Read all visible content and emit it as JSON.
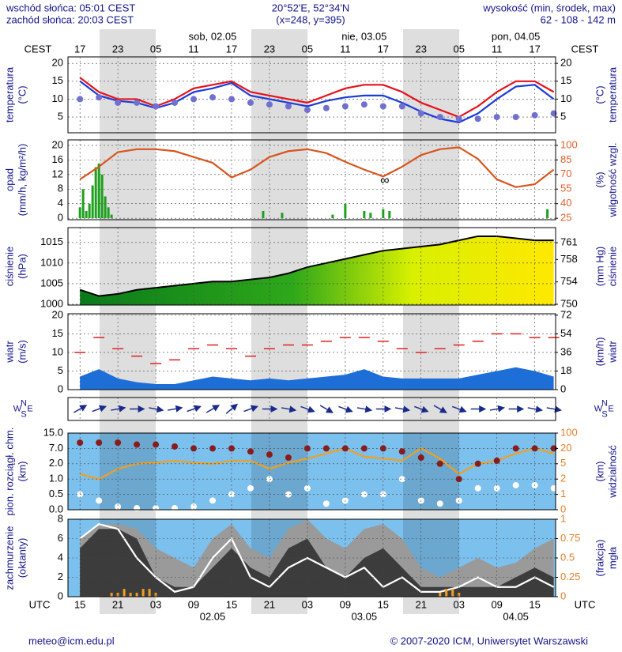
{
  "header": {
    "sunrise": "wschód słońca: 05:01 CEST",
    "sunset": "zachód słońca: 20:03 CEST",
    "coords": "20°52'E, 52°34'N",
    "grid_point": "(x=248, y=395)",
    "elevation_title": "wysokość (min, środek, max)",
    "elevation": "62 - 108 - 142 m"
  },
  "time_axis": {
    "top_title": "CEST",
    "bottom_title": "UTC",
    "xlim": [
      13.1,
      90.3
    ],
    "x": [
      15,
      18,
      21,
      24,
      27,
      30,
      33,
      36,
      39,
      42,
      45,
      48,
      51,
      54,
      57,
      60,
      63,
      66,
      69,
      72,
      75,
      78,
      81,
      84,
      87,
      90
    ],
    "cest_ticks": [
      {
        "value": 15,
        "label": "17"
      },
      {
        "value": 21,
        "label": "23"
      },
      {
        "value": 27,
        "label": "05"
      },
      {
        "value": 33,
        "label": "11"
      },
      {
        "value": 39,
        "label": "17"
      },
      {
        "value": 45,
        "label": "23"
      },
      {
        "value": 51,
        "label": "05"
      },
      {
        "value": 57,
        "label": "11"
      },
      {
        "value": 63,
        "label": "17"
      },
      {
        "value": 69,
        "label": "23"
      },
      {
        "value": 75,
        "label": "05"
      },
      {
        "value": 81,
        "label": "11"
      },
      {
        "value": 87,
        "label": "17"
      }
    ],
    "utc_ticks": [
      15,
      21,
      {
        "value": 27,
        "label": "03"
      },
      {
        "value": 33,
        "label": "09"
      },
      {
        "value": 39,
        "label": "15"
      },
      {
        "value": 45,
        "label": "21"
      },
      {
        "value": 51,
        "label": "03"
      },
      {
        "value": 57,
        "label": "09"
      },
      {
        "value": 63,
        "label": "15"
      },
      {
        "value": 69,
        "label": "21"
      },
      {
        "value": 75,
        "label": "03"
      },
      {
        "value": 81,
        "label": "09"
      },
      {
        "value": 87,
        "label": "15"
      }
    ],
    "days": [
      {
        "top": "sob, 02.05",
        "bottom": "02.05"
      },
      {
        "top": "nie, 03.05",
        "bottom": "03.05"
      },
      {
        "top": "pon, 04.05",
        "bottom": "04.05"
      }
    ]
  },
  "chart_data": [
    {
      "type": "temperature",
      "ylabel": [
        "temperatura",
        "(°C)"
      ],
      "y2label": [
        "(°C)",
        "temperatura"
      ],
      "ylim": [
        0.6,
        21.8
      ],
      "yticks": [
        5,
        10,
        15,
        20
      ],
      "y2lim": [
        0.6,
        21.8
      ],
      "y2ticks": [
        5,
        10,
        15,
        20
      ],
      "series": [
        {
          "mark": "line",
          "color": "#e8101a",
          "values": [
            16,
            12,
            10,
            10,
            8,
            10,
            13,
            14,
            15,
            12,
            11,
            10,
            9,
            11,
            13,
            14,
            14,
            12,
            9,
            7,
            5,
            8,
            12,
            15,
            15,
            12
          ]
        },
        {
          "mark": "line",
          "color": "#1a3cd8",
          "values": [
            15,
            11,
            9.5,
            9,
            7.5,
            9,
            12,
            13,
            14.5,
            11,
            10,
            9,
            8,
            9.5,
            10.5,
            11,
            11,
            9,
            6.5,
            4.5,
            3.5,
            6,
            10,
            13.5,
            14,
            10
          ]
        },
        {
          "mark": "dots",
          "color": "#7070d0",
          "values": [
            10,
            10.5,
            9,
            9,
            8,
            9,
            10,
            10.5,
            10,
            9,
            8.5,
            8,
            7,
            7.5,
            8,
            8.5,
            8,
            8,
            6,
            5,
            4.5,
            4.5,
            5,
            5,
            5.5,
            6
          ]
        }
      ]
    },
    {
      "type": "precipitation",
      "ylabel": [
        "opad",
        "(mm/h, kg/m²/h)"
      ],
      "y2label": [
        "(%)",
        "wilgotność wzgl."
      ],
      "annotation": "∞",
      "ylim": [
        -0.4,
        21.5
      ],
      "yticks": [
        0,
        4,
        8,
        12,
        16,
        20
      ],
      "y2lim": [
        23.5,
        105.6
      ],
      "y2ticks": [
        25,
        40,
        55,
        70,
        85,
        100
      ],
      "y2tick_color": "#e0602a",
      "series": [
        {
          "mark": "bars",
          "color": "#1ea01e",
          "x": [
            15,
            15.5,
            16,
            16.5,
            17,
            17.5,
            18,
            18.5,
            19,
            19.5,
            20,
            44,
            47,
            55,
            57,
            60,
            61,
            63,
            64,
            89
          ],
          "values": [
            3,
            8,
            2,
            4,
            9,
            14,
            15,
            12,
            6,
            3,
            1,
            2,
            1.5,
            1,
            4,
            2,
            1.5,
            2.5,
            2,
            2.5
          ]
        },
        {
          "mark": "line",
          "axis": "y2",
          "color": "#d9541e",
          "values": [
            65,
            78,
            93,
            96,
            96,
            94,
            88,
            82,
            67,
            75,
            88,
            94,
            96,
            92,
            83,
            75,
            68,
            78,
            90,
            96,
            98,
            86,
            65,
            57,
            60,
            75
          ]
        }
      ]
    },
    {
      "type": "pressure",
      "ylabel": [
        "ciśnienie",
        "(hPa)"
      ],
      "y2label": [
        "(mm Hg)",
        "ciśnienie"
      ],
      "ylim": [
        999.8,
        1018.6
      ],
      "yticks": [
        1000,
        1005,
        1010,
        1015
      ],
      "y2lim": [
        749.86,
        763.7
      ],
      "y2ticks": [
        750,
        754,
        758,
        761
      ],
      "series": [
        {
          "mark": "area",
          "color": "#000000",
          "values": [
            1003.5,
            1002,
            1002.5,
            1003.5,
            1004,
            1004.5,
            1005,
            1005.5,
            1005.5,
            1006,
            1006.5,
            1007.5,
            1009,
            1010,
            1011,
            1012,
            1013,
            1013.5,
            1014,
            1014.5,
            1015.5,
            1016.5,
            1016.5,
            1016,
            1015.5,
            1015.5
          ]
        }
      ]
    },
    {
      "type": "wind",
      "ylabel": [
        "wiatr",
        "(m/s)"
      ],
      "y2label": [
        "(km/h)",
        "wiatr"
      ],
      "ylim": [
        0,
        20.4
      ],
      "yticks": [
        0,
        5,
        10,
        15,
        20
      ],
      "y2lim": [
        0,
        73.4
      ],
      "y2ticks": [
        0,
        18,
        36,
        54,
        72
      ],
      "series": [
        {
          "mark": "area",
          "color": "#1e6ed8",
          "values": [
            3.5,
            5.5,
            3,
            2,
            1.5,
            1.5,
            2.5,
            3.5,
            3,
            2.5,
            3,
            2.5,
            3,
            3.5,
            4,
            5.5,
            3.5,
            3,
            3,
            3,
            3,
            4,
            5,
            6,
            5,
            3.5
          ]
        },
        {
          "mark": "dashes",
          "color": "#e02020",
          "values": [
            10,
            14,
            11,
            9,
            7,
            8,
            11,
            12,
            11,
            9,
            11,
            12,
            12,
            13,
            14,
            14,
            13,
            11,
            10,
            11,
            12,
            13,
            15,
            15,
            14,
            14
          ]
        }
      ]
    },
    {
      "type": "wind-direction",
      "compass": [
        "N",
        "W",
        "E",
        "S"
      ],
      "series": [
        {
          "mark": "arrows",
          "color": "#1a2a8a",
          "values": [
            240,
            250,
            260,
            270,
            280,
            260,
            250,
            240,
            230,
            250,
            270,
            280,
            290,
            300,
            290,
            280,
            270,
            280,
            290,
            300,
            290,
            270,
            260,
            270,
            280,
            280
          ]
        }
      ]
    },
    {
      "type": "cloud-base",
      "ylabel": [
        "pion. rozciągł. chm.",
        "(km)"
      ],
      "y2label": [
        "(km)",
        "widzialność"
      ],
      "ylim": [
        0,
        15
      ],
      "yticks": [
        {
          "value": 0,
          "label": "0.0"
        },
        0.5,
        {
          "value": 1,
          "label": "1.0"
        },
        {
          "value": 2,
          "label": "2.0"
        },
        {
          "value": 7,
          "label": "7.0"
        },
        {
          "value": 15,
          "label": "15.0"
        }
      ],
      "y2lim": [
        0,
        100
      ],
      "y2ticks": [
        0,
        1,
        2,
        5,
        20,
        100
      ],
      "y2tick_color": "#e0802a",
      "series": [
        {
          "mark": "line",
          "axis": "y2",
          "color": "#f0a020",
          "values": [
            3,
            2,
            4,
            5,
            6,
            8,
            6,
            5,
            8,
            8,
            4,
            6,
            10,
            15,
            20,
            12,
            10,
            8,
            20,
            10,
            3,
            5,
            8,
            15,
            20,
            15
          ]
        },
        {
          "mark": "dots",
          "color": "#8b1a1a",
          "values": [
            10,
            10,
            10,
            9,
            9,
            8,
            7,
            7,
            7,
            6,
            5,
            4,
            7,
            7,
            7,
            7,
            7,
            6,
            4,
            2,
            1,
            2,
            3,
            7,
            7,
            7
          ]
        },
        {
          "mark": "dots",
          "color": "#ffffff",
          "values": [
            0.5,
            0.3,
            0.1,
            0.05,
            0.05,
            0.05,
            0.1,
            0.3,
            0.5,
            0.7,
            1,
            0.5,
            0.7,
            0.2,
            0.3,
            0.5,
            0.5,
            1,
            0.3,
            0.2,
            0.3,
            0.7,
            0.7,
            0.8,
            0.8,
            0.7
          ]
        }
      ]
    },
    {
      "type": "cloud-cover",
      "ylabel": [
        "zachmurzenie",
        "(oktanty)"
      ],
      "y2label": [
        "(frakcja)",
        "mgła"
      ],
      "ylim": [
        0,
        8
      ],
      "yticks": [
        0,
        2,
        4,
        6,
        8
      ],
      "y2lim": [
        0,
        1
      ],
      "y2ticks": [
        0,
        0.25,
        0.5,
        0.75,
        1
      ],
      "y2tick_color": "#e0802a",
      "series": [
        {
          "mark": "area",
          "color": "#9a9a9a",
          "values": [
            6,
            7.5,
            7.5,
            7,
            5,
            4,
            3,
            6,
            7.5,
            5,
            4,
            7,
            8,
            6,
            5,
            7,
            7.5,
            6,
            3,
            2,
            3,
            4,
            3,
            3.5,
            5,
            6
          ]
        },
        {
          "mark": "area",
          "color": "#3c3c3c",
          "values": [
            5,
            7,
            7,
            6,
            2,
            1,
            1,
            3,
            5,
            3,
            2,
            5,
            6,
            3,
            2,
            4,
            5,
            3,
            1,
            1,
            1,
            1,
            1,
            2,
            3,
            2
          ]
        },
        {
          "mark": "line",
          "color": "#ffffff",
          "values": [
            6,
            7.5,
            7,
            4,
            2,
            0.5,
            1,
            4,
            6,
            2,
            1,
            3,
            4,
            3,
            2,
            3,
            1,
            2,
            0.5,
            0.5,
            1,
            2,
            1,
            1,
            2,
            1
          ]
        },
        {
          "mark": "bars",
          "axis": "y2",
          "color": "#f0a020",
          "x": [
            20,
            21,
            22,
            23,
            24,
            25,
            26,
            27,
            72,
            73,
            74,
            75
          ],
          "values": [
            0.05,
            0.05,
            0.1,
            0.05,
            0.05,
            0.1,
            0.1,
            0.05,
            0.05,
            0.1,
            0.1,
            0.05
          ]
        }
      ]
    }
  ],
  "footer": {
    "email": "meteo@icm.edu.pl",
    "copyright": "© 2007-2020 ICM, Uniwersytet Warszawski"
  }
}
